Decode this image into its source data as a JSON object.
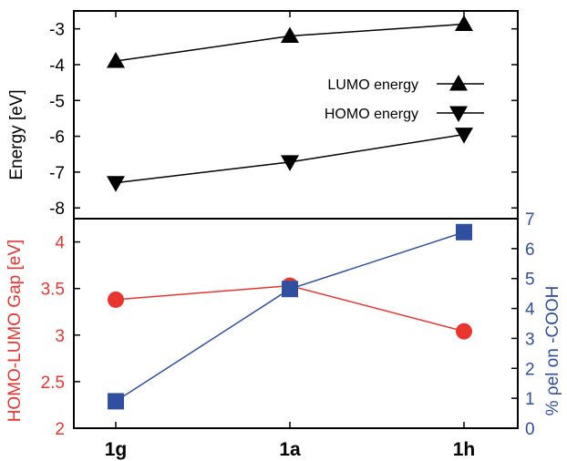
{
  "chart_data": [
    {
      "type": "line",
      "categories": [
        "1g",
        "1a",
        "1h"
      ],
      "ylabel": "Energy [eV]",
      "ylim": [
        -8.3,
        -2.5
      ],
      "yticks": [
        -3,
        -4,
        -5,
        -6,
        -7,
        -8
      ],
      "legend_position": "right",
      "series": [
        {
          "name": "LUMO energy",
          "marker": "triangle-up",
          "color": "#000000",
          "values": [
            -3.9,
            -3.2,
            -2.87
          ]
        },
        {
          "name": "HOMO energy",
          "marker": "triangle-down",
          "color": "#000000",
          "values": [
            -7.3,
            -6.72,
            -5.95
          ]
        }
      ]
    },
    {
      "type": "line",
      "categories": [
        "1g",
        "1a",
        "1h"
      ],
      "ylabel": "HOMO-LUMO Gap [eV]",
      "ylabel_color": "#e8352f",
      "ylim": [
        2.0,
        4.25
      ],
      "yticks": [
        2,
        2.5,
        3,
        3.5,
        4
      ],
      "y2label": "% ρel on -COOH",
      "y2label_color": "#2f4fa0",
      "y2lim": [
        0,
        7
      ],
      "y2ticks": [
        0,
        1,
        2,
        3,
        4,
        5,
        6,
        7
      ],
      "series": [
        {
          "axis": "left",
          "marker": "circle",
          "color": "#e8352f",
          "values": [
            3.38,
            3.53,
            3.04
          ]
        },
        {
          "axis": "right",
          "marker": "square",
          "color": "#2f4fa0",
          "values": [
            0.9,
            4.65,
            6.55
          ]
        }
      ]
    }
  ]
}
